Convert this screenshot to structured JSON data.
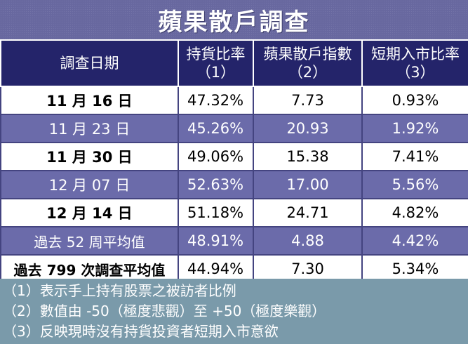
{
  "title": "蘋果散戶調查",
  "headers": {
    "date": "調查日期",
    "hold_line1": "持貨比率",
    "hold_line2": "（1）",
    "index_line1": "蘋果散戶指數",
    "index_line2": "（2）",
    "short_line1": "短期入市比率",
    "short_line2": "（3）"
  },
  "rows": [
    {
      "date": "11 月 16 日",
      "hold": "47.32%",
      "index": "7.73",
      "short": "0.93%"
    },
    {
      "date": "11 月 23 日",
      "hold": "45.26%",
      "index": "20.93",
      "short": "1.92%"
    },
    {
      "date": "11 月 30 日",
      "hold": "49.06%",
      "index": "15.38",
      "short": "7.41%"
    },
    {
      "date": "12 月 07 日",
      "hold": "52.63%",
      "index": "17.00",
      "short": "5.56%"
    },
    {
      "date": "12 月 14 日",
      "hold": "51.18%",
      "index": "24.71",
      "short": "4.82%"
    },
    {
      "date": "過去 52 周平均值",
      "hold": "48.91%",
      "index": "4.88",
      "short": "4.42%"
    },
    {
      "date": "過去 799 次調查平均值",
      "hold": "44.94%",
      "index": "7.30",
      "short": "5.34%"
    }
  ],
  "notes": [
    "（1）表示手上持有股票之被訪者比例",
    "（2）數值由 -50（極度悲觀）至 +50（極度樂觀）",
    "（3）反映現時沒有持貨投資者短期入市意欲"
  ],
  "colors": {
    "header_bg": "#24246a",
    "dark_row_bg": "#6b6baa",
    "light_row_bg": "#ffffff",
    "notes_bg": "#7a9aaa"
  }
}
